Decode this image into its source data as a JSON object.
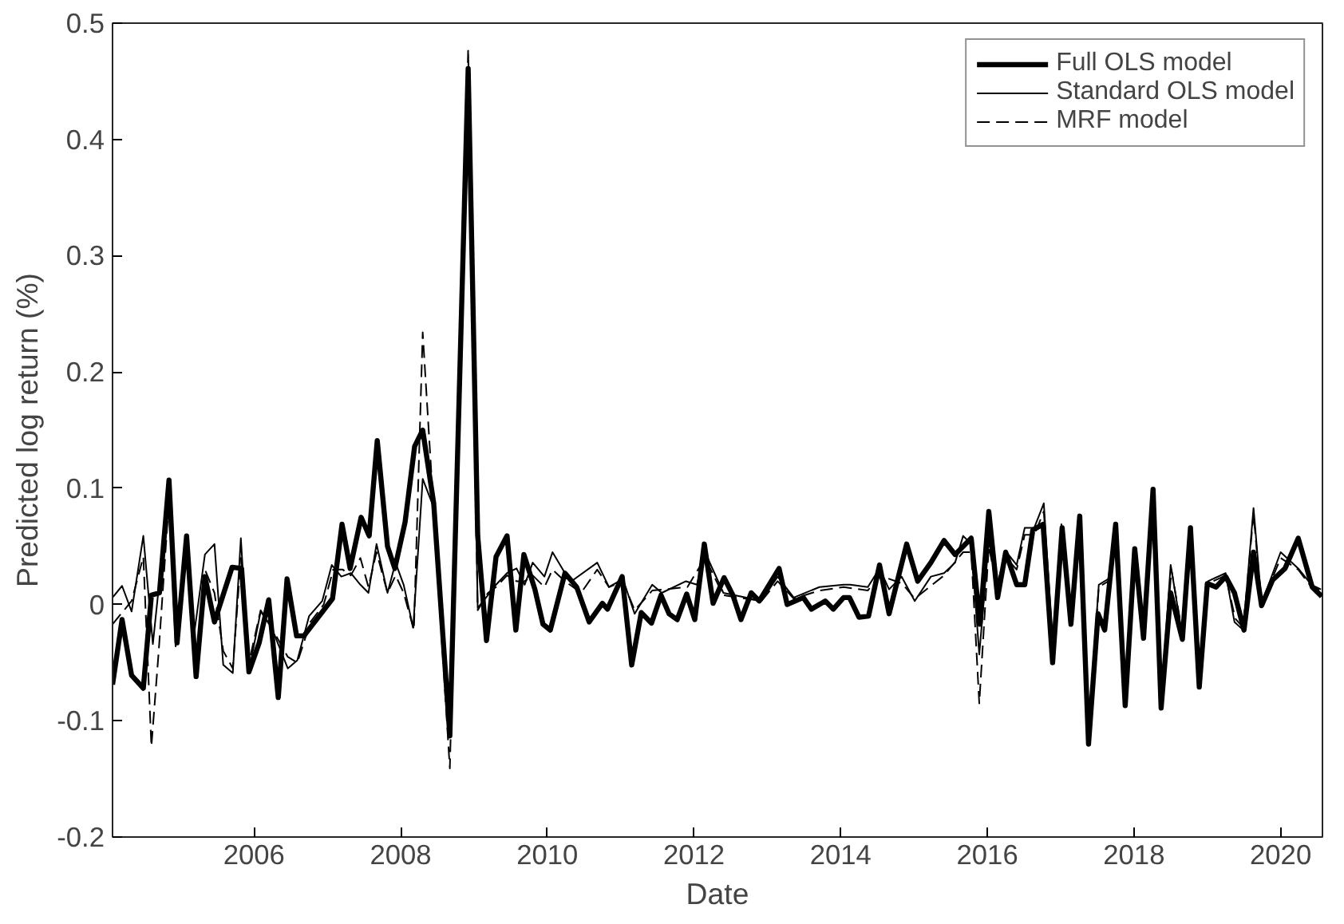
{
  "chart_data": {
    "type": "line",
    "xlabel": "Date",
    "ylabel": "Predicted log return (%)",
    "xlim": [
      2004.07,
      2020.57
    ],
    "xticks": [
      2006,
      2008,
      2010,
      2012,
      2014,
      2016,
      2018,
      2020
    ],
    "ylim": [
      -0.2,
      0.5
    ],
    "yticks": [
      {
        "value": -0.2,
        "label": "-0.2"
      },
      {
        "value": -0.1,
        "label": "-0.1"
      },
      0,
      0.1,
      0.2,
      0.3,
      0.4,
      0.5
    ],
    "grid": false,
    "legend": "top right",
    "marker": "none",
    "series": [
      {
        "name": "Full OLS model",
        "color": "#000000",
        "line_style": "solid",
        "x": [
          2004.07,
          2004.2,
          2004.33,
          2004.49,
          2004.6,
          2004.71,
          2004.84,
          2004.95,
          2005.08,
          2005.21,
          2005.33,
          2005.46,
          2005.7,
          2005.83,
          2005.93,
          2006.07,
          2006.2,
          2006.33,
          2006.45,
          2006.58,
          2006.68,
          2007.07,
          2007.2,
          2007.31,
          2007.46,
          2007.57,
          2007.68,
          2007.82,
          2007.92,
          2008.06,
          2008.19,
          2008.3,
          2008.45,
          2008.67,
          2008.92,
          2009.05,
          2009.17,
          2009.3,
          2009.45,
          2009.57,
          2009.68,
          2009.83,
          2009.94,
          2010.04,
          2010.24,
          2010.4,
          2010.57,
          2010.75,
          2010.82,
          2011.02,
          2011.15,
          2011.28,
          2011.42,
          2011.55,
          2011.66,
          2011.77,
          2011.9,
          2012.01,
          2012.14,
          2012.26,
          2012.41,
          2012.53,
          2012.64,
          2012.78,
          2012.89,
          2013.16,
          2013.27,
          2013.49,
          2013.6,
          2013.79,
          2013.9,
          2014.04,
          2014.12,
          2014.25,
          2014.38,
          2014.53,
          2014.66,
          2014.9,
          2015.05,
          2015.23,
          2015.41,
          2015.56,
          2015.67,
          2015.78,
          2015.9,
          2016.02,
          2016.14,
          2016.25,
          2016.4,
          2016.51,
          2016.62,
          2016.76,
          2016.89,
          2017.02,
          2017.14,
          2017.26,
          2017.38,
          2017.51,
          2017.6,
          2017.75,
          2017.88,
          2018.01,
          2018.13,
          2018.26,
          2018.37,
          2018.5,
          2018.66,
          2018.77,
          2018.89,
          2019.0,
          2019.12,
          2019.25,
          2019.37,
          2019.5,
          2019.63,
          2019.74,
          2019.89,
          2020.06,
          2020.24,
          2020.43,
          2020.56
        ],
        "values": [
          -0.069,
          -0.013,
          -0.061,
          -0.072,
          0.008,
          0.01,
          0.107,
          -0.033,
          0.059,
          -0.062,
          0.024,
          -0.015,
          0.032,
          0.031,
          -0.058,
          -0.033,
          0.004,
          -0.08,
          0.022,
          -0.027,
          -0.027,
          0.005,
          0.069,
          0.031,
          0.075,
          0.059,
          0.141,
          0.05,
          0.031,
          0.071,
          0.136,
          0.15,
          0.087,
          -0.113,
          0.461,
          0.059,
          -0.031,
          0.041,
          0.059,
          -0.022,
          0.043,
          0.013,
          -0.017,
          -0.022,
          0.027,
          0.015,
          -0.015,
          0.001,
          -0.004,
          0.024,
          -0.052,
          -0.007,
          -0.016,
          0.008,
          -0.008,
          -0.013,
          0.009,
          -0.013,
          0.052,
          0.001,
          0.023,
          0.008,
          -0.013,
          0.01,
          0.003,
          0.031,
          0.0,
          0.006,
          -0.004,
          0.003,
          -0.004,
          0.006,
          0.006,
          -0.011,
          -0.01,
          0.034,
          -0.008,
          0.052,
          0.02,
          0.036,
          0.055,
          0.043,
          0.05,
          0.057,
          -0.017,
          0.08,
          0.006,
          0.045,
          0.017,
          0.017,
          0.064,
          0.069,
          -0.05,
          0.066,
          -0.017,
          0.076,
          -0.12,
          -0.008,
          -0.022,
          0.069,
          -0.087,
          0.048,
          -0.029,
          0.099,
          -0.089,
          0.01,
          -0.03,
          0.066,
          -0.071,
          0.018,
          0.015,
          0.024,
          0.01,
          -0.022,
          0.045,
          -0.001,
          0.021,
          0.031,
          0.057,
          0.015,
          0.007
        ]
      },
      {
        "name": "Standard OLS model",
        "color": "#000000",
        "line_style": "solid",
        "x": [
          2004.07,
          2004.2,
          2004.33,
          2004.49,
          2004.62,
          2004.84,
          2004.93,
          2005.08,
          2005.19,
          2005.33,
          2005.46,
          2005.58,
          2005.71,
          2005.82,
          2005.93,
          2006.09,
          2006.24,
          2006.46,
          2006.59,
          2006.75,
          2006.93,
          2007.06,
          2007.19,
          2007.32,
          2007.45,
          2007.56,
          2007.67,
          2007.82,
          2007.93,
          2008.04,
          2008.17,
          2008.3,
          2008.44,
          2008.67,
          2008.92,
          2009.05,
          2009.19,
          2009.3,
          2009.45,
          2009.58,
          2009.69,
          2009.8,
          2009.96,
          2010.07,
          2010.24,
          2010.35,
          2010.68,
          2010.84,
          2011.03,
          2011.19,
          2011.43,
          2011.56,
          2011.89,
          2012.04,
          2012.15,
          2012.4,
          2012.7,
          2012.92,
          2013.14,
          2013.36,
          2013.71,
          2014.04,
          2014.13,
          2014.37,
          2014.53,
          2014.66,
          2014.83,
          2015.01,
          2015.23,
          2015.41,
          2015.56,
          2015.67,
          2015.78,
          2015.89,
          2016.02,
          2016.13,
          2016.26,
          2016.4,
          2016.51,
          2016.64,
          2016.77,
          2016.9,
          2017.01,
          2017.14,
          2017.25,
          2017.38,
          2017.52,
          2017.65,
          2017.76,
          2017.89,
          2018.0,
          2018.13,
          2018.26,
          2018.37,
          2018.5,
          2018.66,
          2018.77,
          2018.89,
          2019.01,
          2019.25,
          2019.37,
          2019.49,
          2019.63,
          2019.74,
          2020.0,
          2020.24,
          2020.42,
          2020.55
        ],
        "values": [
          0.006,
          0.016,
          -0.006,
          0.059,
          -0.034,
          0.099,
          -0.036,
          0.052,
          -0.022,
          0.043,
          0.052,
          -0.052,
          -0.059,
          0.057,
          -0.057,
          -0.006,
          -0.02,
          -0.055,
          -0.048,
          -0.01,
          0.003,
          0.034,
          0.024,
          0.027,
          0.017,
          0.01,
          0.052,
          0.01,
          0.036,
          0.017,
          -0.02,
          0.108,
          0.085,
          -0.103,
          0.45,
          -0.003,
          0.008,
          0.017,
          0.027,
          0.031,
          0.017,
          0.036,
          0.024,
          0.045,
          0.027,
          0.021,
          0.036,
          0.015,
          0.022,
          -0.008,
          0.017,
          0.01,
          0.02,
          0.017,
          0.045,
          0.01,
          0.006,
          0.003,
          0.024,
          0.006,
          0.015,
          0.017,
          0.017,
          0.015,
          0.031,
          0.013,
          0.024,
          0.003,
          0.024,
          0.027,
          0.036,
          0.059,
          0.052,
          -0.043,
          0.055,
          0.017,
          0.045,
          0.034,
          0.066,
          0.066,
          0.087,
          -0.043,
          0.069,
          -0.013,
          0.064,
          -0.108,
          0.017,
          0.022,
          0.066,
          -0.085,
          0.045,
          -0.027,
          0.097,
          -0.085,
          0.034,
          -0.027,
          0.064,
          -0.069,
          0.02,
          0.027,
          -0.015,
          -0.022,
          0.083,
          0.001,
          0.045,
          0.031,
          0.017,
          0.013
        ]
      },
      {
        "name": "MRF model",
        "color": "#000000",
        "line_style": "dashed",
        "x": [
          2004.07,
          2004.33,
          2004.49,
          2004.6,
          2004.7,
          2004.84,
          2004.95,
          2005.08,
          2005.21,
          2005.33,
          2005.46,
          2005.58,
          2005.71,
          2005.82,
          2005.93,
          2006.09,
          2006.24,
          2006.46,
          2006.59,
          2006.77,
          2006.95,
          2007.08,
          2007.21,
          2007.32,
          2007.45,
          2007.56,
          2007.67,
          2007.82,
          2007.93,
          2008.04,
          2008.18,
          2008.3,
          2008.44,
          2008.67,
          2008.92,
          2009.05,
          2009.19,
          2009.3,
          2009.45,
          2009.58,
          2009.69,
          2009.8,
          2009.96,
          2010.07,
          2010.24,
          2010.46,
          2010.68,
          2010.84,
          2011.03,
          2011.19,
          2011.43,
          2011.91,
          2012.15,
          2012.4,
          2012.92,
          2013.14,
          2013.36,
          2013.71,
          2014.04,
          2014.37,
          2014.53,
          2014.84,
          2015.01,
          2015.41,
          2015.67,
          2015.78,
          2015.89,
          2016.02,
          2016.13,
          2016.26,
          2016.4,
          2016.51,
          2016.64,
          2016.77,
          2016.9,
          2017.01,
          2017.14,
          2017.25,
          2017.38,
          2017.52,
          2017.65,
          2017.76,
          2017.89,
          2018.0,
          2018.13,
          2018.26,
          2018.37,
          2018.51,
          2018.66,
          2018.77,
          2018.9,
          2019.01,
          2019.25,
          2019.38,
          2019.49,
          2019.63,
          2019.74,
          2020.0,
          2020.24,
          2020.42,
          2020.55
        ],
        "values": [
          -0.017,
          0.003,
          0.041,
          -0.122,
          -0.04,
          0.09,
          -0.03,
          0.05,
          -0.05,
          0.03,
          0.01,
          -0.04,
          -0.055,
          0.04,
          -0.05,
          -0.005,
          -0.02,
          -0.045,
          -0.05,
          -0.015,
          0.0,
          0.03,
          0.03,
          0.025,
          0.04,
          0.015,
          0.045,
          0.01,
          0.025,
          0.01,
          -0.022,
          0.234,
          0.09,
          -0.141,
          0.478,
          -0.005,
          0.01,
          0.015,
          0.025,
          0.02,
          0.02,
          0.025,
          0.015,
          0.03,
          0.02,
          0.01,
          0.03,
          0.015,
          0.02,
          -0.005,
          0.012,
          0.015,
          0.04,
          0.008,
          0.003,
          0.02,
          0.005,
          0.012,
          0.015,
          0.012,
          0.025,
          0.018,
          0.005,
          0.025,
          0.045,
          0.045,
          -0.085,
          0.05,
          0.015,
          0.04,
          0.03,
          0.06,
          0.06,
          0.08,
          -0.045,
          0.065,
          -0.015,
          0.06,
          -0.11,
          0.015,
          0.02,
          0.06,
          -0.085,
          0.045,
          -0.025,
          0.095,
          -0.085,
          0.03,
          -0.025,
          0.06,
          -0.068,
          0.018,
          0.025,
          -0.012,
          -0.02,
          0.078,
          0.0,
          0.04,
          0.03,
          0.015,
          0.012
        ]
      }
    ]
  }
}
